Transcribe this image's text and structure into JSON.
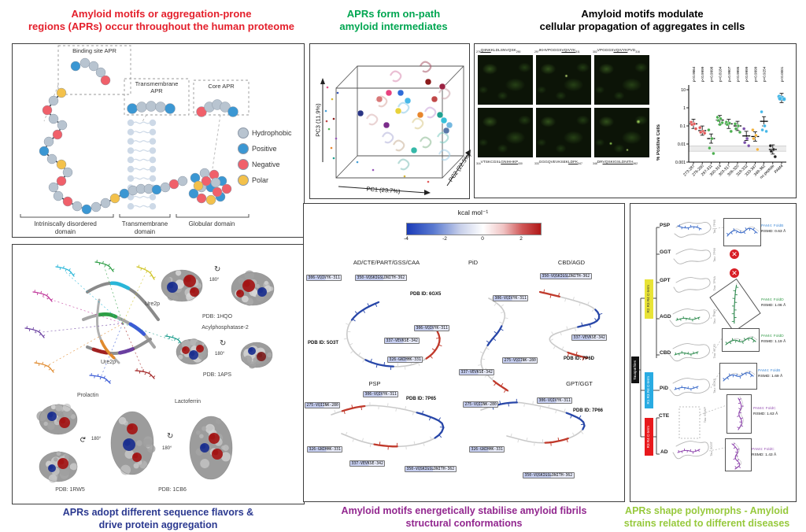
{
  "figure": {
    "titles": {
      "left": "Amyloid motifs or aggregation-prone\nregions (APRs) occur throughout the human proteome",
      "mid": "APRs form on-path\namyloid intermediates",
      "right": "Amyloid motifs modulate\ncellular propagation of aggregates in cells"
    },
    "captions": {
      "left": "APRs adopt different sequence flavors &\ndrive protein aggregation",
      "mid": "Amyloid motifs energetically stabilise amyloid fibrils\nstructural conformations",
      "right": "APRs shape polymorphs - Amyloid\nstrains related to different diseases"
    },
    "colors": {
      "title_left": "#e4202c",
      "title_mid": "#00a651",
      "title_right": "#000000",
      "caption_left": "#2b3990",
      "caption_mid": "#92278f",
      "caption_right": "#97c93d"
    }
  },
  "proteome_panel": {
    "callouts": {
      "binding": "Binding site APR",
      "transmembrane": "Transmembrane\nAPR",
      "core": "Core APR"
    },
    "legend": [
      {
        "label": "Hydrophobic",
        "color": "#b8c4d0"
      },
      {
        "label": "Positive",
        "color": "#3b97d3"
      },
      {
        "label": "Negative",
        "color": "#f0606a"
      },
      {
        "label": "Polar",
        "color": "#f3c14b"
      }
    ],
    "domains": [
      "Intriniscally disordered\ndomain",
      "Transmembrane\ndomain",
      "Globular domain"
    ]
  },
  "pca_panel": {
    "x_label": "PC1 (23.7%)",
    "y_label": "PC2 (22.5%)",
    "z_label": "PC3 (11.9%)"
  },
  "cells_panel": {
    "sequences_top": [
      {
        "start": "276",
        "pre": "",
        "u": "QIINK",
        "post": "KLDLSNVQSK",
        "end": "290"
      },
      {
        "start": "297",
        "pre": "IKHVPGGGS",
        "u": "VQIVYK",
        "post": "",
        "end": "311"
      },
      {
        "start": "302",
        "pre": "VPGGGS",
        "u": "VQIVYK",
        "post": "PVD",
        "end": "316"
      }
    ],
    "sequences_bottom": [
      {
        "start": "316",
        "pre": "VTSKCGSL",
        "u": "GNIHHKP",
        "post": "",
        "end": "330"
      },
      {
        "start": "333",
        "pre": "GGGQVEVKSEK",
        "u": "LDFK",
        "post": "",
        "end": "347"
      },
      {
        "start": "348",
        "pre": "DR",
        "u": "VQSKIGSLDNITH",
        "post": "",
        "end": "362"
      }
    ],
    "plot": {
      "ylabel": "% Positive Cells",
      "yticks": [
        "10",
        "1",
        "0.1",
        "0.01",
        "0.001"
      ],
      "band": [
        0.004,
        0.008
      ],
      "groups": [
        {
          "label": "273-287",
          "p": "p<0.9864",
          "color": "#e05a5a",
          "points": [
            0.16,
            0.13,
            0.12,
            0.07
          ],
          "mean": 0.13
        },
        {
          "label": "276-290",
          "p": "p<0.9999",
          "color": "#e05a5a",
          "points": [
            0.08,
            0.05,
            0.045,
            0.04
          ],
          "mean": 0.055
        },
        {
          "label": "297-311",
          "p": "p<0.9998",
          "color": "#4caf50",
          "points": [
            0.06,
            0.02,
            0.006,
            0.003
          ],
          "mean": 0.02
        },
        {
          "label": "300-314",
          "p": "p=0.8184",
          "color": "#4caf50",
          "points": [
            0.3,
            0.25,
            0.2,
            0.15,
            0.12
          ],
          "mean": 0.21
        },
        {
          "label": "303-317",
          "p": "p=0.9907",
          "color": "#4caf50",
          "points": [
            0.16,
            0.14,
            0.12,
            0.05
          ],
          "mean": 0.13
        },
        {
          "label": "306-320",
          "p": "p<0.9995",
          "color": "#4caf50",
          "points": [
            0.13,
            0.1,
            0.07,
            0.045
          ],
          "mean": 0.1
        },
        {
          "label": "318-332",
          "p": "p<0.9999",
          "color": "#7b52ab",
          "points": [
            0.07,
            0.02,
            0.012,
            0.008
          ],
          "mean": 0.028
        },
        {
          "label": "333-347",
          "p": "p<0.9999",
          "color": "#f2b23e",
          "points": [
            0.06,
            0.03,
            0.02,
            0.005
          ],
          "mean": 0.026
        },
        {
          "label": "348-362",
          "p": "p=0.9254",
          "color": "#45b8e8",
          "points": [
            0.6,
            0.1,
            0.06,
            0.05
          ],
          "mean": 0.18
        },
        {
          "label": "no peptide",
          "p": "",
          "color": "#222222",
          "points": [
            0.008,
            0.005,
            0.004,
            0.002
          ],
          "mean": 0.005
        },
        {
          "label": "PAM4",
          "p": "p<0.0001",
          "color": "#45b8e8",
          "points": [
            4.2,
            3.6,
            3.2,
            3.0
          ],
          "mean": 3.5
        }
      ]
    }
  },
  "flavors_panel": {
    "center_label": "Ure2p",
    "items": [
      {
        "name": "Ure2p",
        "pdb": "PDB: 1HQO",
        "rot": "180°"
      },
      {
        "name": "Acylphosphatase-2",
        "pdb": "PDB: 1APS",
        "rot": "180°"
      },
      {
        "name": "Prolactin",
        "pdb": "PDB: 1RW5",
        "rot": "180°"
      },
      {
        "name": "Lactoferrin",
        "pdb": "PDB: 1CB6",
        "rot": "180°"
      }
    ]
  },
  "energetics_panel": {
    "colorbar": {
      "title": "kcal mol⁻¹",
      "ticks": [
        "-4",
        "-2",
        "0",
        "2"
      ]
    },
    "groups": [
      {
        "name": "AD/CTE/PART/GSS/CAA",
        "pdb": "PDB ID: 5O3T",
        "tags": [
          "306-VQIVYK-311",
          "350-VQSKIGSLDNITH-362",
          "337-VEVKSE-342",
          "326-GNIHHK-331"
        ]
      },
      {
        "name": "PiD",
        "pdb": "PDB ID: 6GX5",
        "tags": [
          "306-VQIVYK-311",
          "337-VEVKSE-342"
        ]
      },
      {
        "name": "CBD/AGD",
        "pdb": "PDB ID: 7P6D",
        "tags": [
          "350-VQSKIGSLDNITH-362",
          "306-VQIVYK-311",
          "337-VEVKSE-342",
          "275-VQIINK-280"
        ]
      },
      {
        "name": "PSP",
        "pdb": "PDB ID: 7P65",
        "tags": [
          "306-VQIVYK-311",
          "275-VQIINK-280",
          "326-GNIHHK-331",
          "337-VEVKSE-342",
          "350-VQSKIGSLDNITH-362"
        ]
      },
      {
        "name": "GPT/GGT",
        "pdb": "PDB ID: 7P66",
        "tags": [
          "275-VQIINK-280",
          "306-VQIVYK-311",
          "326-GNIHHK-331",
          "350-VQSKIGSLDNITH-362"
        ]
      }
    ]
  },
  "polymorphs_panel": {
    "root_label": "Tauopathies",
    "clades": [
      {
        "label": "R2 R3 R4 C-term",
        "color": "#e8e337"
      },
      {
        "label": "R1 R3 R4 C-term",
        "color": "#29abe2"
      },
      {
        "label": "R3 R4 C-term",
        "color": "#e8191c"
      }
    ],
    "items": [
      {
        "disease": "PSP",
        "tau": "Tau: 7P65",
        "pam4": "PAM4: FoldB",
        "rsmd": "RSMD: 0.63 Å",
        "fold_color": "#4a90d9"
      },
      {
        "disease": "GGT",
        "tau": "Tau: 7P66"
      },
      {
        "disease": "GPT",
        "tau": "Tau: 7P6A"
      },
      {
        "disease": "AGD",
        "tau": "Tau: 7P6D",
        "pam4": "PAM4: FoldD",
        "rsmd": "RSMD: 1.06 Å",
        "fold_color": "#3a9e4f"
      },
      {
        "disease": "CBD",
        "tau": "Tau: 6TJO",
        "pam4": "PAM4: FoldD",
        "rsmd": "RSMD: 1.19 Å",
        "fold_color": "#3a9e4f"
      },
      {
        "disease": "PiD",
        "tau": "Tau: 6GX5",
        "pam4": "PAM4: FoldB",
        "rsmd": "RSMD: 1.69 Å",
        "fold_color": "#4a90d9"
      },
      {
        "disease": "CTE",
        "tau": "Tau: 6NWP",
        "pam4": "PAM4: FoldC",
        "rsmd": "RSMD: 1.63 Å",
        "fold_color": "#9b59b6"
      },
      {
        "disease": "AD",
        "tau": "Tau: 5O3T",
        "pam4": "PAM4: FoldC",
        "rsmd": "RSMD: 1.43 Å",
        "fold_color": "#9b59b6"
      }
    ]
  }
}
